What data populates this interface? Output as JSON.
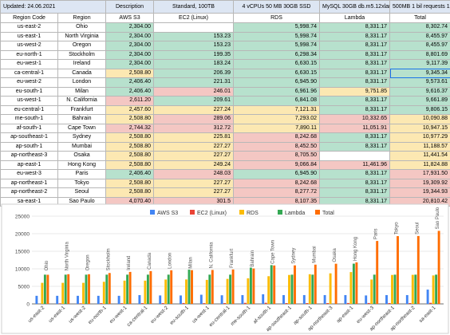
{
  "sheet": {
    "updated": "Updated: 24.06.2021",
    "header": [
      "Description",
      "Standard, 100TB",
      "4 vCPUs 50 MB 30GB SSD",
      "MySQL 30GB db.m5.12xlarge",
      "500MB 1 bil requests 1s",
      ""
    ],
    "col_headers": [
      "Region Code",
      "Region",
      "AWS S3",
      "EC2 (Linux)",
      "RDS",
      "Lambda",
      "Total"
    ],
    "rows": [
      {
        "code": "us-east-2",
        "region": "Ohio",
        "s3": "2,304.00",
        "ec2": "",
        "rds": "5,998.74",
        "lambda": "8,331.17",
        "total": "8,302.74",
        "cs3": "g",
        "cec2": "w",
        "crds": "g",
        "clam": "g",
        "ctot": "g"
      },
      {
        "code": "us-east-1",
        "region": "North Virginia",
        "s3": "2,304.00",
        "ec2": "153.23",
        "rds": "5,998.74",
        "lambda": "8,331.17",
        "total": "8,455.97",
        "cs3": "g",
        "cec2": "g",
        "crds": "g",
        "clam": "g",
        "ctot": "g"
      },
      {
        "code": "us-west-2",
        "region": "Oregon",
        "s3": "2,304.00",
        "ec2": "153.23",
        "rds": "5,998.74",
        "lambda": "8,331.17",
        "total": "8,455.97",
        "cs3": "g",
        "cec2": "g",
        "crds": "g",
        "clam": "g",
        "ctot": "g"
      },
      {
        "code": "eu-north-1",
        "region": "Stockholm",
        "s3": "2,304.00",
        "ec2": "199.35",
        "rds": "6,298.34",
        "lambda": "8,331.17",
        "total": "8,801.69",
        "cs3": "g",
        "cec2": "g",
        "crds": "g",
        "clam": "g",
        "ctot": "g"
      },
      {
        "code": "eu-west-1",
        "region": "Ireland",
        "s3": "2,304.00",
        "ec2": "183.24",
        "rds": "6,630.15",
        "lambda": "8,331.17",
        "total": "9,117.39",
        "cs3": "g",
        "cec2": "g",
        "crds": "g",
        "clam": "g",
        "ctot": "g"
      },
      {
        "code": "ca-central-1",
        "region": "Canada",
        "s3": "2,508.80",
        "ec2": "206.39",
        "rds": "6,630.15",
        "lambda": "8,331.17",
        "total": "9,345.34",
        "cs3": "y",
        "cec2": "g",
        "crds": "g",
        "clam": "g",
        "ctot": "g"
      },
      {
        "code": "eu-west-2",
        "region": "London",
        "s3": "2,406.40",
        "ec2": "221.31",
        "rds": "6,945.90",
        "lambda": "8,331.17",
        "total": "9,573.61",
        "cs3": "g",
        "cec2": "g",
        "crds": "g",
        "clam": "g",
        "ctot": "g"
      },
      {
        "code": "eu-south-1",
        "region": "Milan",
        "s3": "2,406.40",
        "ec2": "246.01",
        "rds": "6,961.96",
        "lambda": "9,751.85",
        "total": "9,616.37",
        "cs3": "g",
        "cec2": "r",
        "crds": "g",
        "clam": "y",
        "ctot": "g"
      },
      {
        "code": "us-west-1",
        "region": "N. California",
        "s3": "2,611.20",
        "ec2": "209.61",
        "rds": "6,841.08",
        "lambda": "8,331.17",
        "total": "9,661.89",
        "cs3": "r",
        "cec2": "g",
        "crds": "g",
        "clam": "g",
        "ctot": "g"
      },
      {
        "code": "eu-central-1",
        "region": "Frankfurt",
        "s3": "2,457.60",
        "ec2": "227.24",
        "rds": "7,121.31",
        "lambda": "8,331.17",
        "total": "9,806.15",
        "cs3": "y",
        "cec2": "y",
        "crds": "y",
        "clam": "g",
        "ctot": "g"
      },
      {
        "code": "me-south-1",
        "region": "Bahrain",
        "s3": "2,508.80",
        "ec2": "289.06",
        "rds": "7,293.02",
        "lambda": "10,332.65",
        "total": "10,090.88",
        "cs3": "y",
        "cec2": "r",
        "crds": "y",
        "clam": "r",
        "ctot": "y"
      },
      {
        "code": "af-south-1",
        "region": "Cape Town",
        "s3": "2,744.32",
        "ec2": "312.72",
        "rds": "7,890.11",
        "lambda": "11,051.91",
        "total": "10,947.15",
        "cs3": "r",
        "cec2": "r",
        "crds": "y",
        "clam": "r",
        "ctot": "y"
      },
      {
        "code": "ap-southeast-1",
        "region": "Sydney",
        "s3": "2,508.80",
        "ec2": "225.81",
        "rds": "8,242.68",
        "lambda": "8,331.17",
        "total": "10,977.29",
        "cs3": "y",
        "cec2": "y",
        "crds": "r",
        "clam": "g",
        "ctot": "y"
      },
      {
        "code": "ap-south-1",
        "region": "Mumbai",
        "s3": "2,508.80",
        "ec2": "227.27",
        "rds": "8,452.50",
        "lambda": "8,331.17",
        "total": "11,188.57",
        "cs3": "y",
        "cec2": "y",
        "crds": "r",
        "clam": "g",
        "ctot": "y"
      },
      {
        "code": "ap-northeast-3",
        "region": "Osaka",
        "s3": "2,508.80",
        "ec2": "227.27",
        "rds": "8,705.50",
        "lambda": "",
        "total": "11,441.54",
        "cs3": "y",
        "cec2": "y",
        "crds": "r",
        "clam": "w",
        "ctot": "y"
      },
      {
        "code": "ap-east-1",
        "region": "Hong Kong",
        "s3": "2,508.80",
        "ec2": "249.24",
        "rds": "9,066.84",
        "lambda": "11,461.96",
        "total": "11,824.88",
        "cs3": "y",
        "cec2": "y",
        "crds": "r",
        "clam": "r",
        "ctot": "y"
      },
      {
        "code": "eu-west-3",
        "region": "Paris",
        "s3": "2,406.40",
        "ec2": "248.03",
        "rds": "6,945.90",
        "lambda": "8,331.17",
        "total": "17,931.50",
        "cs3": "g",
        "cec2": "r",
        "crds": "g",
        "clam": "g",
        "ctot": "r"
      },
      {
        "code": "ap-northeast-1",
        "region": "Tokyo",
        "s3": "2,508.80",
        "ec2": "227.27",
        "rds": "8,242.68",
        "lambda": "8,331.17",
        "total": "19,309.92",
        "cs3": "y",
        "cec2": "y",
        "crds": "r",
        "clam": "g",
        "ctot": "r"
      },
      {
        "code": "ap-northeast-2",
        "region": "Seoul",
        "s3": "2,508.80",
        "ec2": "227.27",
        "rds": "8,277.72",
        "lambda": "8,331.17",
        "total": "19,344.93",
        "cs3": "y",
        "cec2": "y",
        "crds": "r",
        "clam": "g",
        "ctot": "r"
      },
      {
        "code": "sa-east-1",
        "region": "Sao Paulo",
        "s3": "4,070.40",
        "ec2": "301.5",
        "rds": "8,107.35",
        "lambda": "8,331.17",
        "total": "20,810.42",
        "cs3": "r",
        "cec2": "r",
        "crds": "r",
        "clam": "g",
        "ctot": "r"
      }
    ]
  },
  "colors": {
    "s3": "#4285f4",
    "ec2": "#ea4335",
    "rds": "#fbbc04",
    "lambda": "#34a853",
    "total": "#ff6d01",
    "grid": "#e0e0e0",
    "axis": "#444444"
  },
  "chart_data": {
    "type": "bar",
    "categories": [
      "us-east-2",
      "us-east-1",
      "us-west-2",
      "eu-north-1",
      "eu-west-1",
      "ca-central-1",
      "eu-west-2",
      "eu-south-1",
      "us-west-1",
      "eu-central-1",
      "me-south-1",
      "af-south-1",
      "ap-southeast-1",
      "ap-south-1",
      "ap-northeast-3",
      "ap-east-1",
      "eu-west-3",
      "ap-northeast-1",
      "ap-northeast-2",
      "sa-east-1"
    ],
    "annotations": [
      "Ohio",
      "North Virginia",
      "Oregon",
      "Stockholm",
      "Ireland",
      "Canada",
      "London",
      "Milan",
      "N. California",
      "Frankfurt",
      "Bahrain",
      "Cape Town",
      "Sydney",
      "Mumbai",
      "Osaka",
      "Hong Kong",
      "Paris",
      "Tokyo",
      "Seoul",
      "Sao Paulo"
    ],
    "series": [
      {
        "name": "AWS S3",
        "values": [
          2304,
          2304,
          2304,
          2304,
          2304,
          2508.8,
          2406.4,
          2406.4,
          2611.2,
          2457.6,
          2508.8,
          2744.32,
          2508.8,
          2508.8,
          2508.8,
          2508.8,
          2406.4,
          2508.8,
          2508.8,
          4070.4
        ]
      },
      {
        "name": "EC2 (Linux)",
        "values": [
          0,
          153.23,
          153.23,
          199.35,
          183.24,
          206.39,
          221.31,
          246.01,
          209.61,
          227.24,
          289.06,
          312.72,
          225.81,
          227.27,
          227.27,
          249.24,
          248.03,
          227.27,
          227.27,
          301.5
        ]
      },
      {
        "name": "RDS",
        "values": [
          5998.74,
          5998.74,
          5998.74,
          6298.34,
          6630.15,
          6630.15,
          6945.9,
          6961.96,
          6841.08,
          7121.31,
          7293.02,
          7890.11,
          8242.68,
          8452.5,
          8705.5,
          9066.84,
          6945.9,
          8242.68,
          8277.72,
          8107.35
        ]
      },
      {
        "name": "Lambda",
        "values": [
          8331.17,
          8331.17,
          8331.17,
          8331.17,
          8331.17,
          8331.17,
          8331.17,
          9751.85,
          8331.17,
          8331.17,
          10332.65,
          11051.91,
          8331.17,
          8331.17,
          0,
          11461.96,
          8331.17,
          8331.17,
          8331.17,
          8331.17
        ]
      },
      {
        "name": "Total",
        "values": [
          8302.74,
          8455.97,
          8455.97,
          8801.69,
          9117.39,
          9345.34,
          9573.61,
          9616.37,
          9661.89,
          9806.15,
          10090.88,
          10947.15,
          10977.29,
          11188.57,
          11441.54,
          11824.88,
          17931.5,
          19309.92,
          19344.93,
          20810.42
        ]
      }
    ],
    "yticks": [
      "0",
      "5000",
      "10000",
      "15000",
      "20000",
      "25000"
    ],
    "ylim": [
      0,
      25000
    ],
    "grid": true,
    "legend": "top"
  }
}
